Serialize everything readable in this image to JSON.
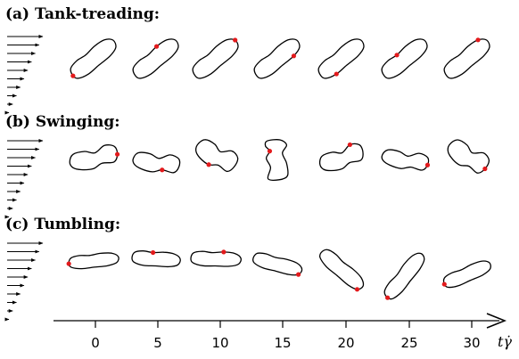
{
  "panels": [
    {
      "title": "(a) Tank-treading:"
    },
    {
      "title": "(b) Swinging:"
    },
    {
      "title": "(c) Tumbling:"
    }
  ],
  "time_axis": {
    "ticks": [
      "0",
      "5",
      "10",
      "15",
      "20",
      "25",
      "30"
    ],
    "label": "tγ̇"
  },
  "colors": {
    "outline": "#000000",
    "marker": "#e31a1c",
    "shear_arrows": "#000000"
  }
}
